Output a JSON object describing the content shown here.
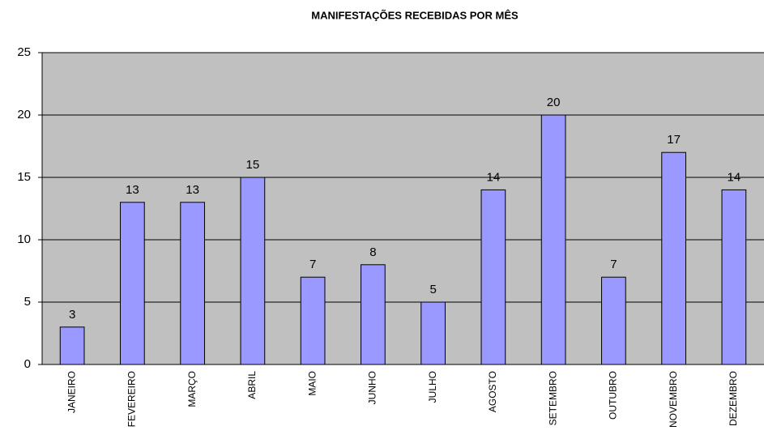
{
  "chart_data": {
    "type": "bar",
    "title": "MANIFESTAÇÕES RECEBIDAS POR MÊS",
    "categories": [
      "JANEIRO",
      "FEVEREIRO",
      "MARÇO",
      "ABRIL",
      "MAIO",
      "JUNHO",
      "JULHO",
      "AGOSTO",
      "SETEMBRO",
      "OUTUBRO",
      "NOVEMBRO",
      "DEZEMBRO"
    ],
    "values": [
      3,
      13,
      13,
      15,
      7,
      8,
      5,
      14,
      20,
      7,
      17,
      14
    ],
    "color": "#9999ff",
    "ylim": [
      0,
      25
    ],
    "yticks": [
      0,
      5,
      10,
      15,
      20,
      25
    ],
    "grid": true
  }
}
